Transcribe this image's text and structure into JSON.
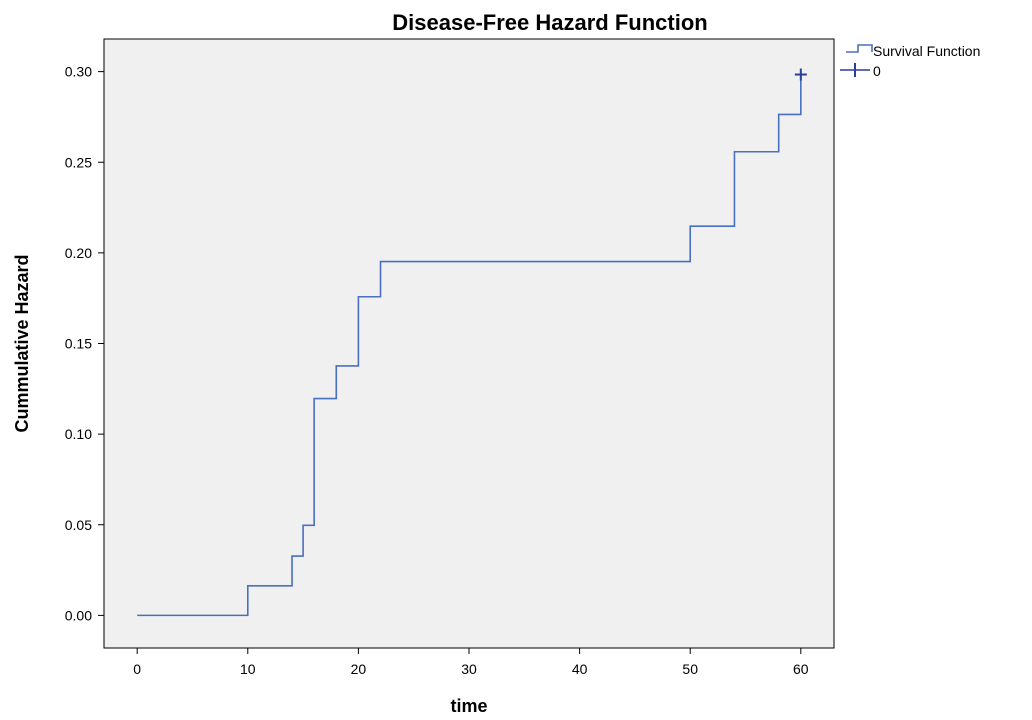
{
  "chart_data": {
    "type": "line",
    "title": "Disease-Free Hazard Function",
    "xlabel": "time",
    "ylabel": "Cummulative Hazard",
    "xlim": [
      -3,
      63
    ],
    "ylim": [
      -0.018,
      0.318
    ],
    "x_ticks": [
      0,
      10,
      20,
      30,
      40,
      50,
      60
    ],
    "x_tick_labels": [
      "0",
      "10",
      "20",
      "30",
      "40",
      "50",
      "60"
    ],
    "y_ticks": [
      0.0,
      0.05,
      0.1,
      0.15,
      0.2,
      0.25,
      0.3
    ],
    "y_tick_labels": [
      "0.00",
      "0.05",
      "0.10",
      "0.15",
      "0.20",
      "0.25",
      "0.30"
    ],
    "grid": false,
    "legend_position": "top-right, outside plot",
    "background_color": "#f0f0f0",
    "series": [
      {
        "name": "Survival Function",
        "step": true,
        "color": "#4a6fc0",
        "points": [
          {
            "x": 0,
            "y": 0.0
          },
          {
            "x": 10,
            "y": 0.0163
          },
          {
            "x": 14,
            "y": 0.0327
          },
          {
            "x": 15,
            "y": 0.0497
          },
          {
            "x": 16,
            "y": 0.1196
          },
          {
            "x": 18,
            "y": 0.1376
          },
          {
            "x": 20,
            "y": 0.1758
          },
          {
            "x": 22,
            "y": 0.1952
          },
          {
            "x": 50,
            "y": 0.2147
          },
          {
            "x": 54,
            "y": 0.2558
          },
          {
            "x": 58,
            "y": 0.2764
          },
          {
            "x": 60,
            "y": 0.2984
          }
        ]
      },
      {
        "name": "0",
        "marker": "+",
        "color": "#2a3f9a",
        "points": [
          {
            "x": 60,
            "y": 0.2984
          }
        ]
      }
    ]
  }
}
